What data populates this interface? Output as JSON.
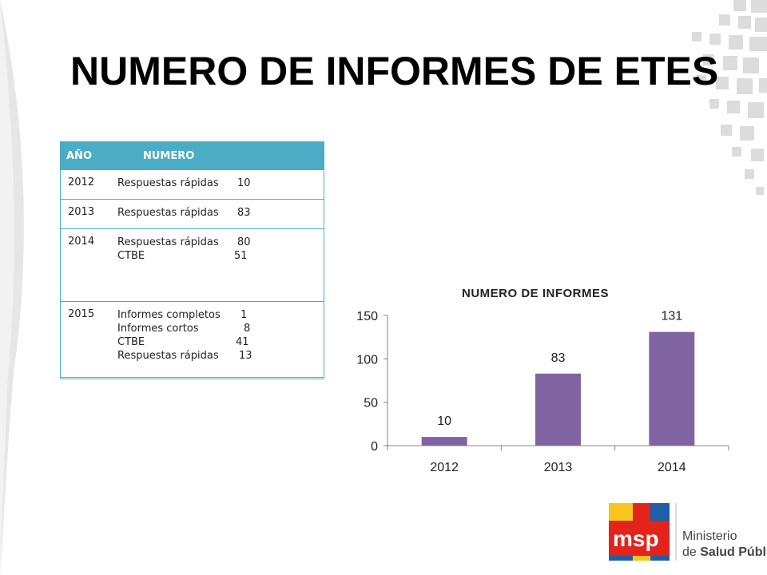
{
  "title": "NUMERO DE INFORMES DE ETES",
  "table": {
    "headers": [
      "AÑO",
      "NUMERO"
    ],
    "rows": [
      {
        "year": "2012",
        "items": [
          {
            "label": "Respuestas rápidas",
            "value": "10"
          }
        ]
      },
      {
        "year": "2013",
        "items": [
          {
            "label": "Respuestas rápidas",
            "value": "83"
          }
        ]
      },
      {
        "year": "2014",
        "items": [
          {
            "label": "Respuestas rápidas",
            "value": "80"
          },
          {
            "label": "CTBE",
            "value": "51"
          }
        ]
      },
      {
        "year": "2015",
        "items": [
          {
            "label": "Informes completos",
            "value": "1"
          },
          {
            "label": "Informes cortos",
            "value": "8"
          },
          {
            "label": "CTBE",
            "value": "41"
          },
          {
            "label": "Respuestas rápidas",
            "value": "13"
          }
        ]
      }
    ]
  },
  "chart_data": {
    "type": "bar",
    "title": "NUMERO DE INFORMES",
    "categories": [
      "2012",
      "2013",
      "2014"
    ],
    "values": [
      10,
      83,
      131
    ],
    "data_labels": [
      "10",
      "83",
      "131"
    ],
    "yticks": [
      "0",
      "50",
      "100",
      "150"
    ],
    "ylim": [
      0,
      150
    ],
    "xlabel": "",
    "ylabel": "",
    "bar_color": "#8064a2",
    "grid": false,
    "legend": "none"
  },
  "logo": {
    "text_top": "Ministerio",
    "text_pre": "de ",
    "text_bold": "Salud Pública",
    "colors": {
      "red": "#e2241b",
      "yellow": "#f7c51e",
      "blue": "#1f5fa8"
    }
  },
  "colors": {
    "header": "#4bacc6",
    "deco": "#d9d9d9"
  }
}
